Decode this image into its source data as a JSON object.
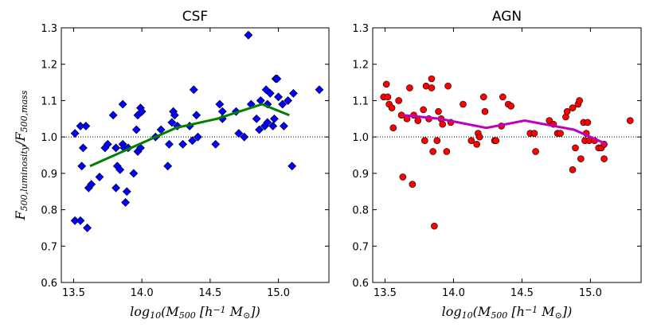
{
  "chart_data": [
    {
      "type": "scatter",
      "title": "CSF",
      "xlabel": [
        {
          "text": "log"
        },
        {
          "text": "10",
          "sub": true
        },
        {
          "text": "(M"
        },
        {
          "text": "500",
          "sub": true
        },
        {
          "text": " [h"
        },
        {
          "text": "−1",
          "sup": true
        },
        {
          "text": " M"
        },
        {
          "text": "⊙",
          "sub": true
        },
        {
          "text": "])"
        }
      ],
      "ylabel": [
        {
          "text": "F"
        },
        {
          "text": "500,luminosity",
          "sub": true
        },
        {
          "text": "/F"
        },
        {
          "text": "500,mass",
          "sub": true
        }
      ],
      "xlim": [
        13.41,
        15.37
      ],
      "ylim": [
        0.6,
        1.3
      ],
      "xticks": [
        13.5,
        {
          "value": 14,
          "label": "14.0"
        },
        14.5,
        {
          "value": 15,
          "label": "15.0"
        }
      ],
      "yticks": [
        0.6,
        0.7,
        0.8,
        0.9,
        {
          "value": 1,
          "label": "1.0"
        },
        1.1,
        1.2,
        1.3
      ],
      "reference_line": 1,
      "series": [
        {
          "type": "scatter",
          "marker": "diamond",
          "color": "#0000ff",
          "x": [
            13.51,
            13.51,
            13.55,
            13.55,
            13.57,
            13.56,
            13.59,
            13.6,
            13.61,
            13.63,
            13.69,
            13.73,
            13.75,
            13.79,
            13.81,
            13.81,
            13.82,
            13.84,
            13.86,
            13.86,
            13.87,
            13.88,
            13.89,
            13.9,
            13.94,
            13.96,
            13.97,
            13.97,
            13.99,
            13.99,
            14.0,
            14.1,
            14.14,
            14.19,
            14.2,
            14.22,
            14.23,
            14.24,
            14.26,
            14.3,
            14.35,
            14.37,
            14.38,
            14.4,
            14.41,
            14.54,
            14.57,
            14.59,
            14.59,
            14.69,
            14.71,
            14.75,
            14.78,
            14.8,
            14.84,
            14.86,
            14.87,
            14.9,
            14.91,
            14.92,
            14.92,
            14.94,
            14.96,
            14.97,
            14.98,
            14.99,
            15.0,
            15.03,
            15.04,
            15.07,
            15.1,
            15.11,
            15.3
          ],
          "values": [
            1.01,
            0.77,
            0.77,
            1.03,
            0.97,
            0.92,
            1.03,
            0.75,
            0.86,
            0.87,
            0.89,
            0.97,
            0.98,
            1.06,
            0.97,
            0.86,
            0.92,
            0.91,
            1.09,
            0.98,
            0.97,
            0.82,
            0.85,
            0.97,
            0.9,
            1.02,
            0.96,
            1.06,
            0.97,
            1.08,
            1.07,
            1.0,
            1.02,
            0.92,
            0.98,
            1.04,
            1.07,
            1.06,
            1.03,
            0.98,
            1.03,
            0.99,
            1.13,
            1.06,
            1.0,
            0.98,
            1.09,
            1.07,
            1.05,
            1.07,
            1.01,
            1.0,
            1.28,
            1.09,
            1.05,
            1.02,
            1.1,
            1.03,
            1.13,
            1.04,
            1.09,
            1.12,
            1.03,
            1.05,
            1.16,
            1.16,
            1.11,
            1.09,
            1.03,
            1.1,
            0.92,
            1.12,
            1.13
          ]
        },
        {
          "type": "line",
          "color": "#007f00",
          "x": [
            13.62,
            13.92,
            14.25,
            14.55,
            14.88,
            15.08
          ],
          "values": [
            0.92,
            0.97,
            1.025,
            1.05,
            1.09,
            1.06
          ]
        }
      ]
    },
    {
      "type": "scatter",
      "title": "AGN",
      "xlabel": [
        {
          "text": "log"
        },
        {
          "text": "10",
          "sub": true
        },
        {
          "text": "(M"
        },
        {
          "text": "500",
          "sub": true
        },
        {
          "text": " [h"
        },
        {
          "text": "−1",
          "sup": true
        },
        {
          "text": " M"
        },
        {
          "text": "⊙",
          "sub": true
        },
        {
          "text": "])"
        }
      ],
      "xlim": [
        13.41,
        15.37
      ],
      "ylim": [
        0.6,
        1.3
      ],
      "xticks": [
        13.5,
        {
          "value": 14,
          "label": "14.0"
        },
        14.5,
        {
          "value": 15,
          "label": "15.0"
        }
      ],
      "yticks": [
        0.6,
        0.7,
        0.8,
        0.9,
        {
          "value": 1,
          "label": "1.0"
        },
        1.1,
        1.2,
        1.3
      ],
      "reference_line": 1,
      "series": [
        {
          "type": "scatter",
          "marker": "circle",
          "color": "#ff0000",
          "x": [
            13.49,
            13.51,
            13.52,
            13.53,
            13.55,
            13.56,
            13.6,
            13.62,
            13.63,
            13.66,
            13.68,
            13.7,
            13.71,
            13.74,
            13.78,
            13.79,
            13.8,
            13.82,
            13.84,
            13.84,
            13.85,
            13.86,
            13.88,
            13.89,
            13.91,
            13.92,
            13.95,
            13.96,
            13.98,
            14.07,
            14.13,
            14.17,
            14.18,
            14.19,
            14.22,
            14.23,
            14.3,
            14.31,
            14.35,
            14.36,
            14.4,
            14.42,
            14.56,
            14.59,
            14.6,
            14.7,
            14.73,
            14.76,
            14.78,
            14.82,
            14.83,
            14.87,
            14.87,
            14.89,
            14.91,
            14.92,
            14.93,
            14.95,
            14.96,
            14.97,
            14.98,
            14.99,
            15.03,
            15.06,
            15.08,
            15.1,
            15.1,
            15.29
          ],
          "values": [
            1.11,
            1.145,
            1.11,
            1.09,
            1.08,
            1.025,
            1.1,
            1.06,
            0.89,
            1.05,
            1.135,
            0.87,
            1.06,
            1.045,
            1.075,
            0.99,
            1.14,
            1.05,
            1.135,
            1.16,
            0.96,
            0.755,
            0.99,
            1.07,
            1.05,
            1.035,
            0.96,
            1.14,
            1.04,
            1.09,
            0.99,
            0.98,
            1.01,
            1.0,
            1.11,
            1.07,
            0.99,
            0.99,
            1.03,
            1.11,
            1.09,
            1.085,
            1.01,
            1.01,
            0.96,
            1.045,
            1.035,
            1.01,
            1.01,
            1.055,
            1.07,
            1.08,
            0.91,
            0.97,
            1.09,
            1.1,
            0.94,
            1.04,
            0.99,
            1.01,
            1.04,
            0.99,
            0.99,
            0.97,
            0.97,
            0.94,
            0.98,
            1.045
          ]
        },
        {
          "type": "line",
          "color": "#bf00bf",
          "x": [
            13.63,
            13.9,
            14.24,
            14.52,
            14.88,
            15.12
          ],
          "values": [
            1.06,
            1.05,
            1.025,
            1.045,
            1.02,
            0.98
          ]
        }
      ]
    }
  ]
}
